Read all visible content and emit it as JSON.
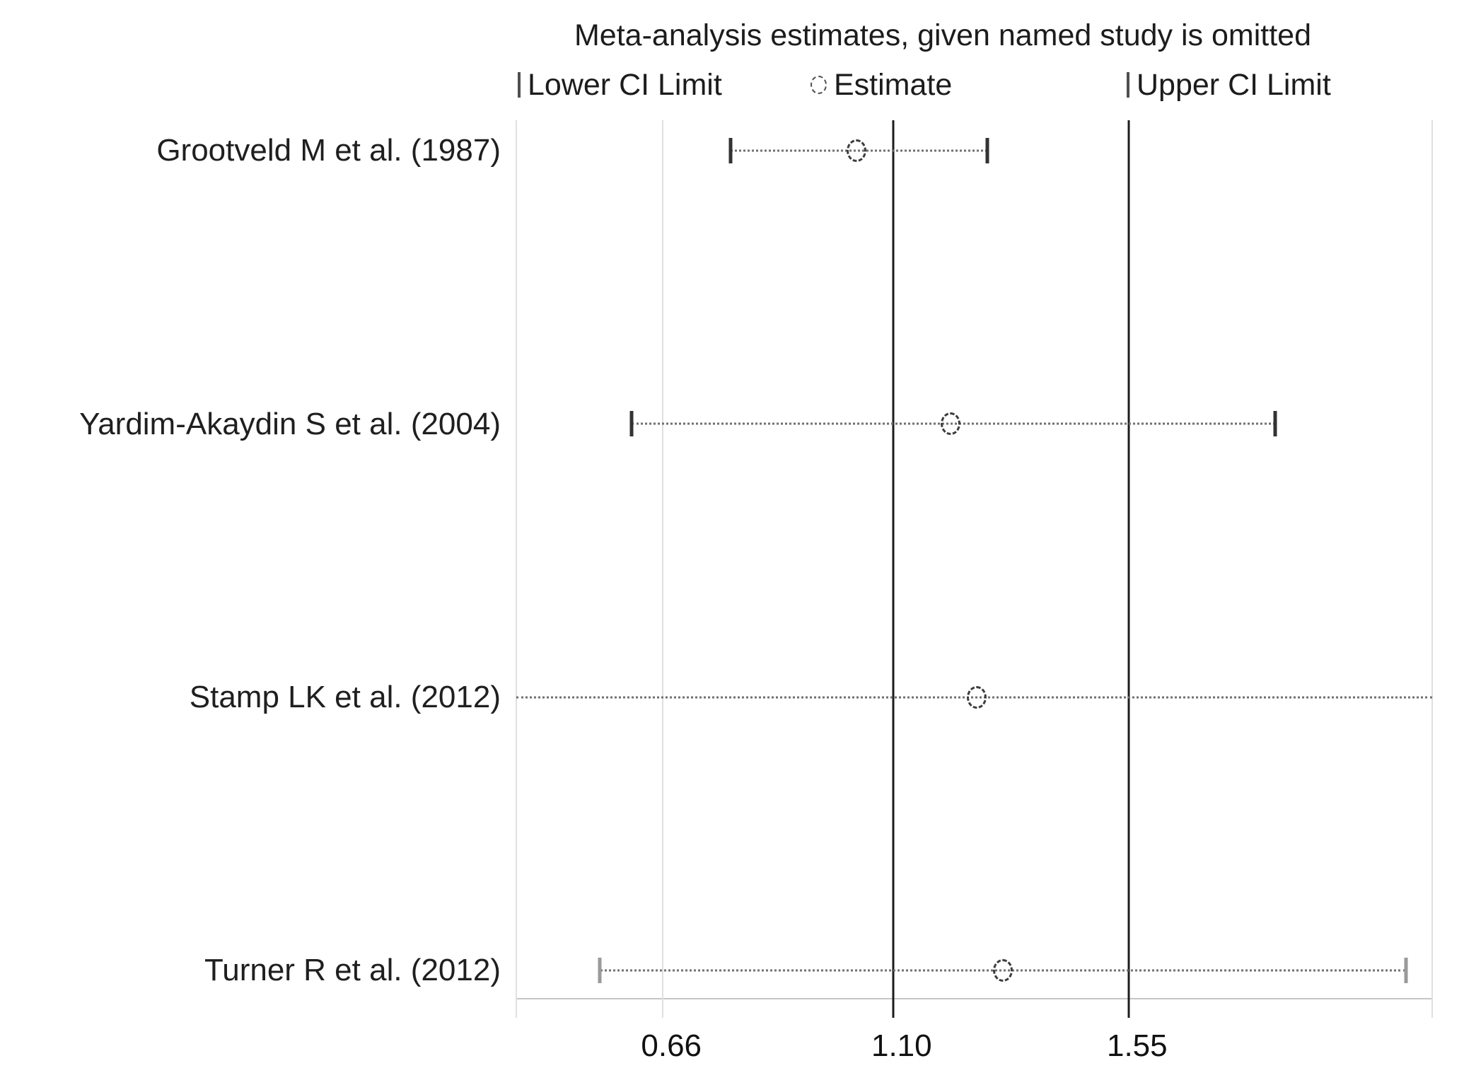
{
  "title": "Meta-analysis estimates, given named study is omitted",
  "legend": {
    "lower": "Lower CI Limit",
    "estimate": "Estimate",
    "upper": "Upper CI Limit"
  },
  "axis": {
    "min": 0.38,
    "max": 2.13,
    "ticks": [
      {
        "label": "0.66",
        "value": 0.66
      },
      {
        "label": "1.10",
        "value": 1.1
      },
      {
        "label": "1.55",
        "value": 1.55
      }
    ],
    "gridlines": [
      0.66
    ],
    "reference_lines": [
      1.1,
      1.55
    ],
    "grid": "vertical-only",
    "scale": "linear"
  },
  "chart_data": {
    "type": "forest",
    "subtype": "leave-one-out-sensitivity",
    "title": "Meta-analysis estimates, given named study is omitted",
    "overall": {
      "lower": 0.66,
      "estimate": 1.1,
      "upper": 1.55
    },
    "xlim": [
      0.38,
      2.13
    ],
    "legend_position": "top",
    "studies": [
      {
        "label": "Grootveld M et al. (1987)",
        "lower": 0.79,
        "estimate": 1.03,
        "upper": 1.28,
        "lower_clipped": false,
        "upper_clipped": false,
        "cap_color": "#333333"
      },
      {
        "label": "Yardim-Akaydin S et al. (2004)",
        "lower": 0.6,
        "estimate": 1.21,
        "upper": 1.83,
        "lower_clipped": false,
        "upper_clipped": false,
        "cap_color": "#333333"
      },
      {
        "label": "Stamp LK et al. (2012)",
        "lower": 0.31,
        "estimate": 1.26,
        "upper": 2.21,
        "lower_clipped": true,
        "upper_clipped": true,
        "cap_color": "#9a9a9a"
      },
      {
        "label": "Turner R et al. (2012)",
        "lower": 0.54,
        "estimate": 1.31,
        "upper": 2.08,
        "lower_clipped": false,
        "upper_clipped": false,
        "cap_color": "#9a9a9a"
      }
    ]
  },
  "colors": {
    "reference_line": "#1c1c1c",
    "gridline": "#e0e0e0",
    "ci_dotted_line": "#707070",
    "text": "#1c1c1c",
    "background": "#ffffff"
  }
}
